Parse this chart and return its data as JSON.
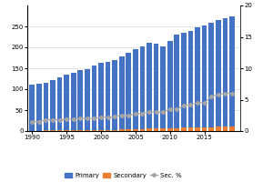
{
  "years": [
    1990,
    1991,
    1992,
    1993,
    1994,
    1995,
    1996,
    1997,
    1998,
    1999,
    2000,
    2001,
    2002,
    2003,
    2004,
    2005,
    2006,
    2007,
    2008,
    2009,
    2010,
    2011,
    2012,
    2013,
    2014,
    2015,
    2016,
    2017,
    2018,
    2019
  ],
  "primary": [
    110,
    112,
    116,
    121,
    128,
    134,
    140,
    145,
    148,
    156,
    163,
    165,
    170,
    178,
    188,
    195,
    202,
    210,
    208,
    202,
    215,
    230,
    235,
    240,
    248,
    252,
    258,
    265,
    270,
    275
  ],
  "secondary": [
    0,
    0,
    2,
    2,
    2,
    2,
    2,
    3,
    3,
    3,
    3,
    3,
    3,
    4,
    4,
    5,
    5,
    6,
    6,
    6,
    7,
    7,
    8,
    8,
    9,
    9,
    9,
    10,
    10,
    11
  ],
  "sec_pct": [
    1.5,
    1.5,
    1.8,
    1.8,
    1.8,
    1.9,
    1.9,
    2.0,
    2.0,
    2.0,
    2.2,
    2.2,
    2.3,
    2.5,
    2.5,
    2.7,
    2.8,
    3.0,
    3.0,
    3.0,
    3.5,
    3.5,
    4.0,
    4.2,
    4.5,
    4.5,
    5.5,
    5.8,
    6.0,
    6.0
  ],
  "primary_color": "#4472C4",
  "secondary_color": "#ED7D31",
  "secpct_color": "#A5A5A5",
  "ylim_left": [
    0,
    300
  ],
  "ylim_right": [
    0,
    20
  ],
  "yticks_left": [
    0,
    50,
    100,
    150,
    200,
    250
  ],
  "yticks_right": [
    0,
    5,
    10,
    15,
    20
  ],
  "xticks": [
    1990,
    1995,
    2000,
    2005,
    2010,
    2015
  ],
  "legend_labels": [
    "Primary",
    "Secondary",
    "Sec. %"
  ],
  "background_color": "#ffffff",
  "grid_color": "#d9d9d9"
}
